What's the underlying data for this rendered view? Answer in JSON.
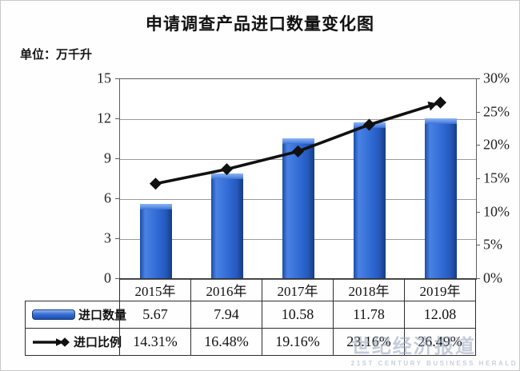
{
  "chart_data": {
    "type": "bar+line combo",
    "title": "申请调查产品进口数量变化图",
    "unit_label": "单位：万千升",
    "categories": [
      "2015年",
      "2016年",
      "2017年",
      "2018年",
      "2019年"
    ],
    "series": [
      {
        "name": "进口数量",
        "type": "bar",
        "axis": "left",
        "values": [
          5.67,
          7.94,
          10.58,
          11.78,
          12.08
        ],
        "display_values": [
          "5.67",
          "7.94",
          "10.58",
          "11.78",
          "12.08"
        ],
        "color": "#2f6ad4"
      },
      {
        "name": "进口比例",
        "type": "line",
        "axis": "right",
        "values": [
          14.31,
          16.48,
          19.16,
          23.16,
          26.49
        ],
        "display_values": [
          "14.31%",
          "16.48%",
          "19.16%",
          "23.16%",
          "26.49%"
        ],
        "color": "#111111",
        "marker": "diamond",
        "end_cap": "arrow"
      }
    ],
    "left_axis": {
      "min": 0,
      "max": 15,
      "ticks": [
        "15",
        "12",
        "9",
        "6",
        "3",
        "0"
      ]
    },
    "right_axis": {
      "min": 0,
      "max": 30,
      "ticks": [
        "30%",
        "25%",
        "20%",
        "15%",
        "10%",
        "5%",
        "0%"
      ]
    },
    "grid": true,
    "legend_position": "table-left"
  },
  "legend": {
    "bar_label": "进口数量",
    "line_label": "进口比例"
  },
  "watermark": {
    "cn": "世纪经济报道",
    "en": "21ST CENTURY BUSINESS HERALD"
  },
  "colors": {
    "bar_face": "#2f6ad4",
    "bar_edge": "#163d85",
    "bar_highlight": "#8fb4f0",
    "line": "#111111",
    "gridline": "#9b9b9b",
    "plot_border": "#5e5e5e",
    "table_border": "#2e2e2e",
    "text": "#111111",
    "watermark": "#94a3b9"
  }
}
